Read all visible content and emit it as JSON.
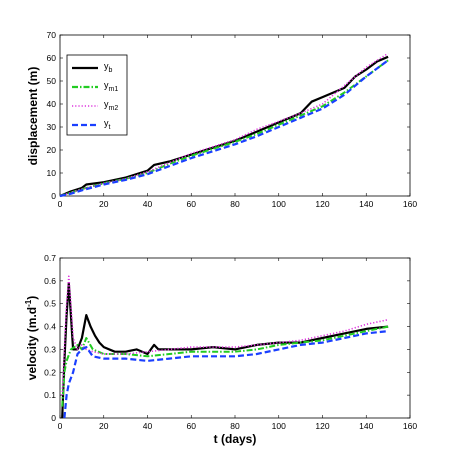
{
  "chart_data": [
    {
      "type": "line",
      "ylabel": "displacement (m)",
      "xlabel": "",
      "xlim": [
        0,
        160
      ],
      "ylim": [
        0,
        70
      ],
      "xticks": [
        0,
        20,
        40,
        60,
        80,
        100,
        120,
        140,
        160
      ],
      "yticks": [
        0,
        10,
        20,
        30,
        40,
        50,
        60,
        70
      ],
      "legend": "top-left",
      "legend_entries": [
        {
          "base": "y",
          "sub": "b"
        },
        {
          "base": "y",
          "sub": "m1"
        },
        {
          "base": "y",
          "sub": "m2"
        },
        {
          "base": "y",
          "sub": "t"
        }
      ],
      "series": [
        {
          "name": "yb",
          "color": "#000000",
          "style": "solid",
          "x": [
            0,
            5,
            10,
            12,
            20,
            30,
            40,
            43,
            50,
            60,
            70,
            80,
            90,
            100,
            110,
            115,
            120,
            130,
            135,
            140,
            145,
            150
          ],
          "y": [
            0,
            2,
            3.5,
            5,
            6,
            8,
            11,
            13.5,
            15,
            18,
            21,
            24,
            28,
            32,
            36,
            41,
            43,
            47,
            52,
            55,
            58.5,
            60.5
          ]
        },
        {
          "name": "ym1",
          "color": "#22cc22",
          "style": "dashdot",
          "x": [
            0,
            5,
            10,
            20,
            30,
            40,
            50,
            60,
            70,
            80,
            90,
            100,
            110,
            120,
            130,
            140,
            150
          ],
          "y": [
            0,
            1.5,
            3,
            5.5,
            7.5,
            10,
            14,
            17.5,
            20.5,
            23.5,
            27,
            31,
            35,
            39,
            45,
            52,
            59
          ]
        },
        {
          "name": "ym2",
          "color": "#dd33dd",
          "style": "dotted",
          "x": [
            0,
            5,
            10,
            20,
            30,
            40,
            50,
            60,
            70,
            80,
            90,
            100,
            110,
            120,
            130,
            140,
            150
          ],
          "y": [
            0,
            1.5,
            3,
            5.5,
            7.5,
            10.5,
            14.5,
            18.5,
            21.5,
            24.5,
            29,
            32.5,
            36,
            40,
            48,
            56,
            62
          ]
        },
        {
          "name": "yt",
          "color": "#1a3fff",
          "style": "dashed",
          "x": [
            0,
            5,
            10,
            20,
            30,
            40,
            50,
            60,
            70,
            80,
            90,
            100,
            110,
            120,
            130,
            140,
            150
          ],
          "y": [
            0,
            1,
            2.5,
            5,
            7,
            9.5,
            13,
            16.5,
            19.5,
            22.5,
            26,
            30,
            34,
            38,
            44,
            52,
            59
          ]
        }
      ]
    },
    {
      "type": "line",
      "xlabel": "t (days)",
      "ylabel_base": "velocity (m.d",
      "ylabel_sup": "-1",
      "ylabel_end": ")",
      "xlim": [
        0,
        160
      ],
      "ylim": [
        0,
        0.7
      ],
      "xticks": [
        0,
        20,
        40,
        60,
        80,
        100,
        120,
        140,
        160
      ],
      "yticks": [
        "0",
        "0.1",
        "0.2",
        "0.3",
        "0.4",
        "0.5",
        "0.6",
        "0.7"
      ],
      "ytick_values": [
        0,
        0.1,
        0.2,
        0.3,
        0.4,
        0.5,
        0.6,
        0.7
      ],
      "series": [
        {
          "name": "yb",
          "color": "#000000",
          "style": "solid",
          "x": [
            1,
            2,
            3,
            4,
            5,
            6,
            8,
            10,
            12,
            14,
            16,
            18,
            20,
            25,
            30,
            35,
            40,
            43,
            45,
            50,
            60,
            70,
            80,
            90,
            100,
            110,
            120,
            130,
            140,
            150
          ],
          "y": [
            0,
            0.25,
            0.45,
            0.59,
            0.45,
            0.3,
            0.3,
            0.35,
            0.45,
            0.4,
            0.36,
            0.33,
            0.31,
            0.29,
            0.29,
            0.3,
            0.28,
            0.32,
            0.3,
            0.3,
            0.3,
            0.31,
            0.3,
            0.32,
            0.33,
            0.33,
            0.35,
            0.37,
            0.39,
            0.4
          ]
        },
        {
          "name": "ym1",
          "color": "#22cc22",
          "style": "dashdot",
          "x": [
            1,
            2,
            3,
            5,
            8,
            10,
            12,
            15,
            20,
            30,
            40,
            50,
            60,
            70,
            80,
            90,
            100,
            110,
            120,
            130,
            140,
            150
          ],
          "y": [
            0.05,
            0.2,
            0.25,
            0.3,
            0.32,
            0.3,
            0.35,
            0.3,
            0.28,
            0.28,
            0.27,
            0.28,
            0.29,
            0.29,
            0.29,
            0.3,
            0.32,
            0.33,
            0.34,
            0.36,
            0.38,
            0.4
          ]
        },
        {
          "name": "ym2",
          "color": "#dd33dd",
          "style": "dotted",
          "x": [
            1,
            2,
            3,
            4,
            5,
            6,
            8,
            10,
            12,
            15,
            20,
            30,
            40,
            50,
            60,
            70,
            80,
            90,
            100,
            110,
            120,
            130,
            140,
            150
          ],
          "y": [
            0.1,
            0.3,
            0.5,
            0.62,
            0.5,
            0.35,
            0.3,
            0.32,
            0.3,
            0.29,
            0.28,
            0.28,
            0.29,
            0.3,
            0.31,
            0.31,
            0.31,
            0.32,
            0.33,
            0.34,
            0.36,
            0.38,
            0.41,
            0.43
          ]
        },
        {
          "name": "yt",
          "color": "#1a3fff",
          "style": "dashed",
          "x": [
            2,
            3,
            4,
            6,
            8,
            10,
            12,
            15,
            20,
            30,
            40,
            50,
            60,
            70,
            80,
            90,
            100,
            110,
            120,
            130,
            140,
            150
          ],
          "y": [
            0,
            0.1,
            0.15,
            0.2,
            0.28,
            0.3,
            0.31,
            0.27,
            0.26,
            0.26,
            0.25,
            0.26,
            0.27,
            0.27,
            0.27,
            0.28,
            0.3,
            0.32,
            0.33,
            0.35,
            0.37,
            0.38
          ]
        }
      ]
    }
  ]
}
